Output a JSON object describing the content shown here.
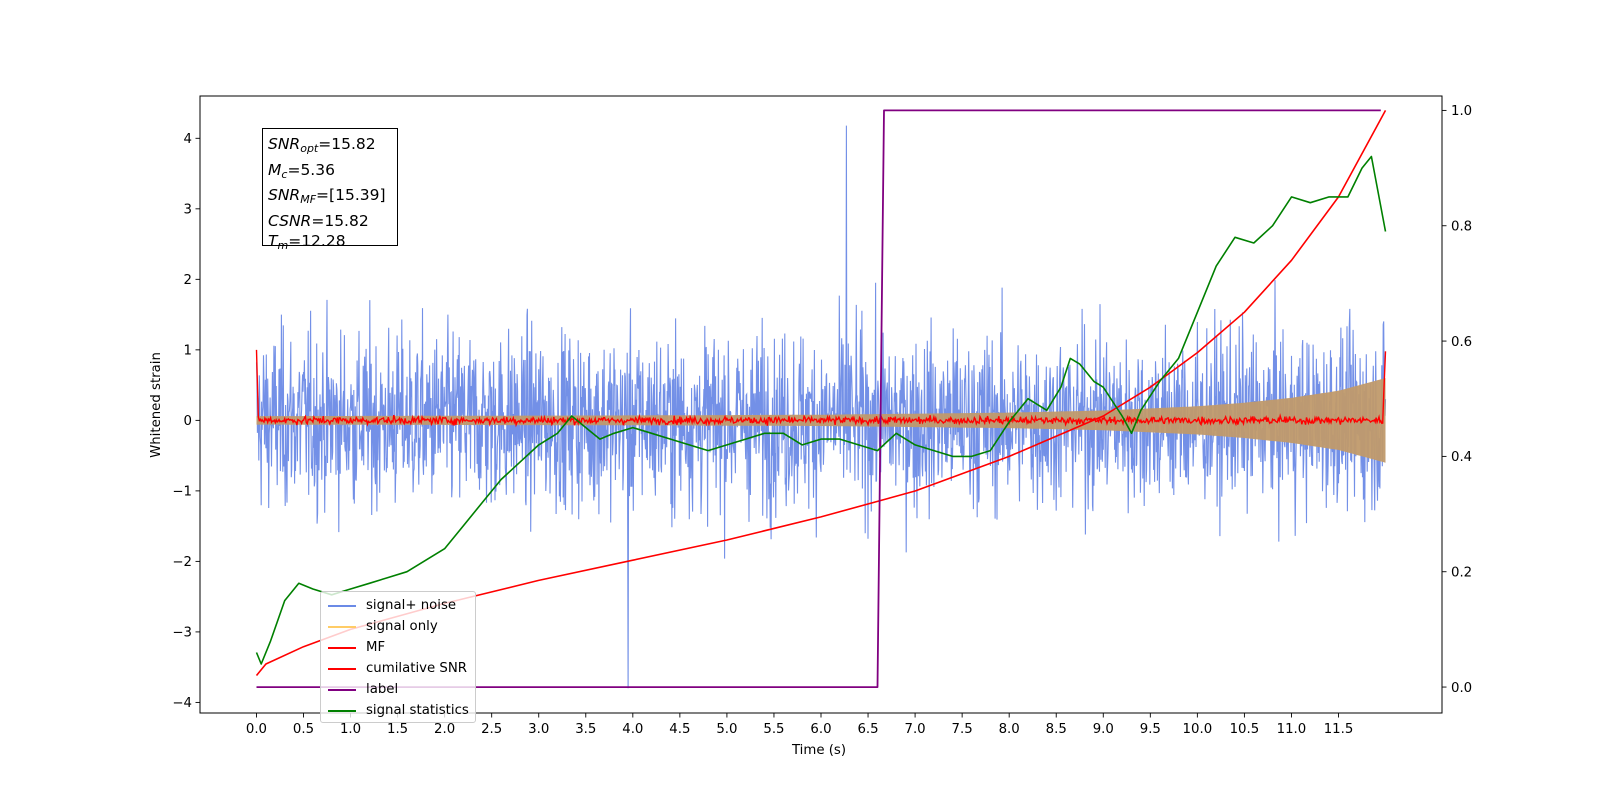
{
  "chart_data": {
    "type": "line",
    "xlabel": "Time (s)",
    "ylabel": "Whitened strain",
    "xlim": [
      -0.6,
      12.6
    ],
    "ylim": [
      -4.15,
      4.6
    ],
    "y2lim": [
      -0.045,
      1.025
    ],
    "x_ticks": [
      0.0,
      0.5,
      1.0,
      1.5,
      2.0,
      2.5,
      3.0,
      3.5,
      4.0,
      4.5,
      5.0,
      5.5,
      6.0,
      6.5,
      7.0,
      7.5,
      8.0,
      8.5,
      9.0,
      9.5,
      10.0,
      10.5,
      11.0,
      11.5
    ],
    "x_tick_labels": [
      "0.0",
      "0.5",
      "1.0",
      "1.5",
      "2.0",
      "2.5",
      "3.0",
      "3.5",
      "4.0",
      "4.5",
      "5.0",
      "5.5",
      "6.0",
      "6.5",
      "7.0",
      "7.5",
      "8.0",
      "8.5",
      "9.0",
      "9.5",
      "10.0",
      "10.5",
      "11.0",
      "11.5"
    ],
    "y_ticks": [
      -4,
      -3,
      -2,
      -1,
      0,
      1,
      2,
      3,
      4
    ],
    "y_tick_labels": [
      "−4",
      "−3",
      "−2",
      "−1",
      "0",
      "1",
      "2",
      "3",
      "4"
    ],
    "y2_ticks": [
      0.0,
      0.2,
      0.4,
      0.6,
      0.8,
      1.0
    ],
    "y2_tick_labels": [
      "0.0",
      "0.2",
      "0.4",
      "0.6",
      "0.8",
      "1.0"
    ],
    "grid": false,
    "legend_position": "lower-left",
    "annotation": {
      "snr_opt": "15.82",
      "mc": "5.36",
      "snr_mf": "[15.39]",
      "csnr": "15.82",
      "tm": "12.28"
    },
    "series": [
      {
        "name": "signal+ noise",
        "axis": "left",
        "color": "#6b8ae6",
        "description_of_values": "whitened noise, roughly ±2.5 with spikes to +4.2 at t≈6.27 and −3.8 at t≈3.95",
        "t_range": [
          0.0,
          12.0
        ]
      },
      {
        "name": "signal only",
        "axis": "left",
        "color": "#ffcc66",
        "envelope": {
          "t": [
            0.0,
            2.0,
            4.0,
            6.0,
            8.0,
            9.0,
            10.0,
            10.5,
            11.0,
            11.5,
            12.0
          ],
          "amp": [
            0.06,
            0.065,
            0.07,
            0.08,
            0.11,
            0.14,
            0.2,
            0.25,
            0.32,
            0.42,
            0.6
          ]
        }
      },
      {
        "name": "MF",
        "axis": "left",
        "color": "#ff0000",
        "t": [
          0.0,
          0.02,
          0.05,
          11.95,
          12.0
        ],
        "values": [
          1.0,
          0.05,
          0.0,
          0.05,
          0.98
        ],
        "note_values": "noisy around 0 with amplitude ~0.07"
      },
      {
        "name": "cumilative SNR",
        "axis": "right",
        "color": "#ff0000",
        "t": [
          0.0,
          0.1,
          0.5,
          1.0,
          2.0,
          3.0,
          4.0,
          5.0,
          6.0,
          7.0,
          8.0,
          9.0,
          9.5,
          10.0,
          10.5,
          11.0,
          11.5,
          12.0
        ],
        "values": [
          0.02,
          0.04,
          0.07,
          0.1,
          0.145,
          0.185,
          0.22,
          0.255,
          0.295,
          0.34,
          0.4,
          0.47,
          0.52,
          0.58,
          0.65,
          0.74,
          0.85,
          1.0
        ]
      },
      {
        "name": "label",
        "axis": "right",
        "color": "#800080",
        "t": [
          0.0,
          6.6,
          6.67,
          11.95
        ],
        "values": [
          0.0,
          0.0,
          1.0,
          1.0
        ]
      },
      {
        "name": "signal statistics",
        "axis": "right",
        "color": "#008000",
        "t": [
          0.0,
          0.05,
          0.15,
          0.3,
          0.45,
          0.6,
          0.8,
          1.0,
          1.2,
          1.4,
          1.6,
          1.8,
          2.0,
          2.2,
          2.4,
          2.6,
          2.8,
          3.0,
          3.2,
          3.35,
          3.5,
          3.65,
          3.8,
          4.0,
          4.2,
          4.4,
          4.6,
          4.8,
          5.0,
          5.2,
          5.4,
          5.5,
          5.6,
          5.8,
          6.0,
          6.2,
          6.4,
          6.6,
          6.8,
          7.0,
          7.2,
          7.4,
          7.6,
          7.8,
          8.0,
          8.2,
          8.4,
          8.55,
          8.65,
          8.75,
          8.9,
          9.0,
          9.2,
          9.3,
          9.4,
          9.6,
          9.8,
          10.0,
          10.2,
          10.4,
          10.6,
          10.8,
          11.0,
          11.2,
          11.4,
          11.6,
          11.75,
          11.85,
          12.0
        ],
        "values": [
          0.06,
          0.04,
          0.08,
          0.15,
          0.18,
          0.17,
          0.16,
          0.17,
          0.18,
          0.19,
          0.2,
          0.22,
          0.24,
          0.28,
          0.32,
          0.36,
          0.39,
          0.42,
          0.44,
          0.47,
          0.45,
          0.43,
          0.44,
          0.45,
          0.44,
          0.43,
          0.42,
          0.41,
          0.42,
          0.43,
          0.44,
          0.44,
          0.44,
          0.42,
          0.43,
          0.43,
          0.42,
          0.41,
          0.44,
          0.42,
          0.41,
          0.4,
          0.4,
          0.41,
          0.46,
          0.5,
          0.48,
          0.52,
          0.57,
          0.56,
          0.53,
          0.52,
          0.47,
          0.44,
          0.48,
          0.53,
          0.57,
          0.65,
          0.73,
          0.78,
          0.77,
          0.8,
          0.85,
          0.84,
          0.85,
          0.85,
          0.9,
          0.92,
          0.79
        ]
      }
    ]
  }
}
